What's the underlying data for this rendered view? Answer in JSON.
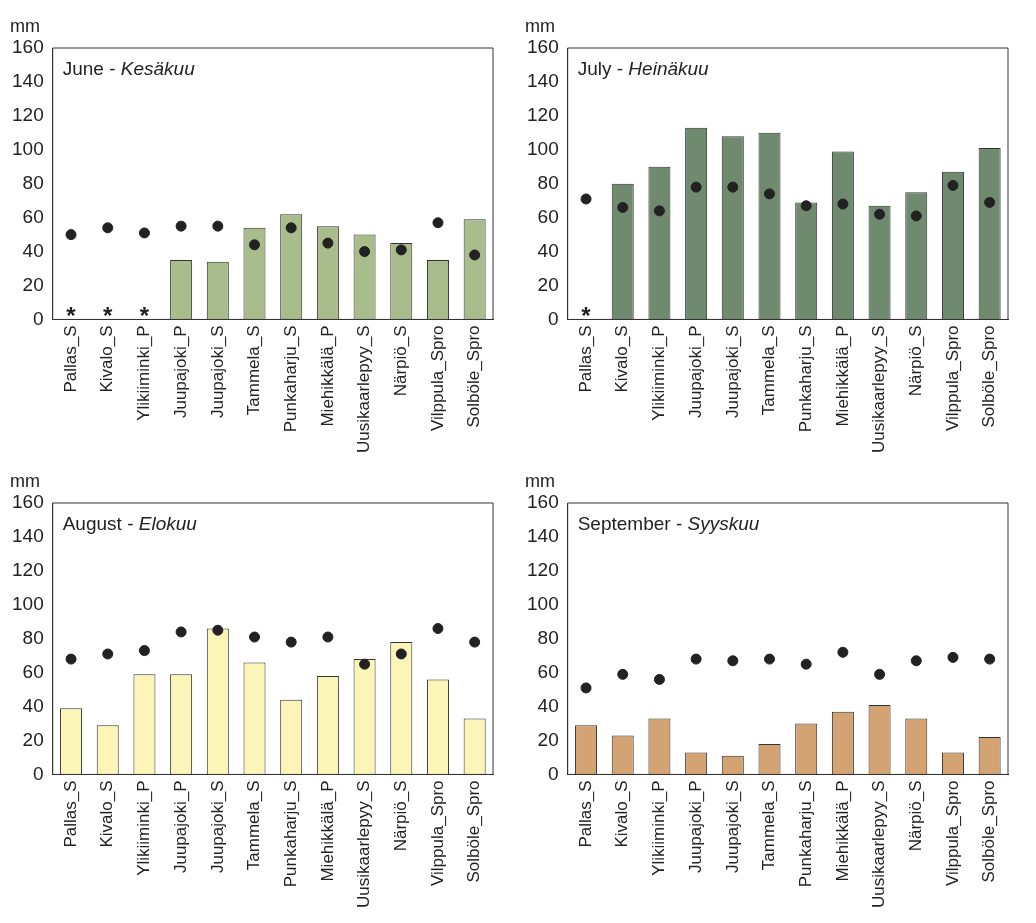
{
  "chart_data": [
    {
      "type": "bar",
      "title": "June -",
      "subtitle": "Kesäkuu",
      "ylabel": "mm",
      "categories": [
        "Pallas_S",
        "Kivalo_S",
        "Ylikiiminki_P",
        "Juupajoki_P",
        "Juupajoki_S",
        "Tammela_S",
        "Punkaharju_S",
        "Miehikkälä_P",
        "Uusikaarlepyy_S",
        "Närpiö_S",
        "Vilppula_Spro",
        "Solböle_Spro"
      ],
      "series": [
        {
          "color": "#a9bc8c",
          "values": [
            null,
            null,
            null,
            35,
            34,
            54,
            62,
            55,
            50,
            45,
            35,
            59
          ]
        },
        {
          "type": "scatter",
          "color": "#222222",
          "x": [
            "Pallas_S",
            "Kivalo_S",
            "Ylikiiminki_P",
            "Juupajoki_P",
            "Juupajoki_S",
            "Tammela_S",
            "Punkaharju_S",
            "Miehikkälä_P",
            "Uusikaarlepyy_S",
            "Närpiö_S",
            "Vilppula_Spro",
            "Solböle_Spro"
          ],
          "values": [
            50,
            54,
            51,
            55,
            55,
            44,
            54,
            45,
            40,
            41,
            57,
            38
          ]
        }
      ],
      "annotations": [
        "*",
        "*",
        "*"
      ],
      "ylim": [
        0,
        160
      ],
      "yticks": [
        0,
        20,
        40,
        60,
        80,
        100,
        120,
        140,
        160
      ],
      "grid": false,
      "legend": false,
      "marker": "circle"
    },
    {
      "type": "bar",
      "title": "July -",
      "subtitle": "Heinäkuu",
      "ylabel": "mm",
      "categories": [
        "Pallas_S",
        "Kivalo_S",
        "Ylikiiminki_P",
        "Juupajoki_P",
        "Juupajoki_S",
        "Tammela_S",
        "Punkaharju_S",
        "Miehikkälä_P",
        "Uusikaarlepyy_S",
        "Närpiö_S",
        "Vilppula_Spro",
        "Solböle_Spro"
      ],
      "series": [
        {
          "color": "#6f8a6e",
          "values": [
            null,
            80,
            90,
            113,
            108,
            110,
            69,
            99,
            67,
            75,
            87,
            101
          ]
        },
        {
          "type": "scatter",
          "color": "#222222",
          "x": [
            "Pallas_S",
            "Kivalo_S",
            "Ylikiiminki_P",
            "Juupajoki_P",
            "Juupajoki_S",
            "Tammela_S",
            "Punkaharju_S",
            "Miehikkälä_P",
            "Uusikaarlepyy_S",
            "Närpiö_S",
            "Vilppula_Spro",
            "Solböle_Spro"
          ],
          "values": [
            71,
            66,
            64,
            78,
            78,
            74,
            67,
            68,
            62,
            61,
            79,
            69
          ]
        }
      ],
      "annotations": [
        "*"
      ],
      "ylim": [
        0,
        160
      ],
      "yticks": [
        0,
        20,
        40,
        60,
        80,
        100,
        120,
        140,
        160
      ],
      "grid": false,
      "legend": false,
      "marker": "circle"
    },
    {
      "type": "bar",
      "title": "August -",
      "subtitle": "Elokuu",
      "ylabel": "mm",
      "categories": [
        "Pallas_S",
        "Kivalo_S",
        "Ylikiiminki_P",
        "Juupajoki_P",
        "Juupajoki_S",
        "Tammela_S",
        "Punkaharju_S",
        "Miehikkälä_P",
        "Uusikaarlepyy_S",
        "Närpiö_S",
        "Vilppula_Spro",
        "Solböle_Spro"
      ],
      "series": [
        {
          "color": "#fbf5b8",
          "values": [
            39,
            29,
            59,
            59,
            86,
            66,
            44,
            58,
            68,
            78,
            56,
            33
          ]
        },
        {
          "type": "scatter",
          "color": "#222222",
          "x": [
            "Pallas_S",
            "Kivalo_S",
            "Ylikiiminki_P",
            "Juupajoki_P",
            "Juupajoki_S",
            "Tammela_S",
            "Punkaharju_S",
            "Miehikkälä_P",
            "Uusikaarlepyy_S",
            "Närpiö_S",
            "Vilppula_Spro",
            "Solböle_Spro"
          ],
          "values": [
            68,
            71,
            73,
            84,
            85,
            81,
            78,
            81,
            65,
            71,
            86,
            78
          ]
        }
      ],
      "ylim": [
        0,
        160
      ],
      "yticks": [
        0,
        20,
        40,
        60,
        80,
        100,
        120,
        140,
        160
      ],
      "grid": false,
      "legend": false,
      "marker": "circle"
    },
    {
      "type": "bar",
      "title": "September -",
      "subtitle": "Syyskuu",
      "ylabel": "mm",
      "categories": [
        "Pallas_S",
        "Kivalo_S",
        "Ylikiiminki_P",
        "Juupajoki_P",
        "Juupajoki_S",
        "Tammela_S",
        "Punkaharju_S",
        "Miehikkälä_P",
        "Uusikaarlepyy_S",
        "Närpiö_S",
        "Vilppula_Spro",
        "Solböle_Spro"
      ],
      "series": [
        {
          "color": "#d4a373",
          "values": [
            29,
            23,
            33,
            13,
            11,
            18,
            30,
            37,
            41,
            33,
            13,
            22
          ]
        },
        {
          "type": "scatter",
          "color": "#222222",
          "x": [
            "Pallas_S",
            "Kivalo_S",
            "Ylikiiminki_P",
            "Juupajoki_P",
            "Juupajoki_S",
            "Tammela_S",
            "Punkaharju_S",
            "Miehikkälä_P",
            "Uusikaarlepyy_S",
            "Närpiö_S",
            "Vilppula_Spro",
            "Solböle_Spro"
          ],
          "values": [
            51,
            59,
            56,
            68,
            67,
            68,
            65,
            72,
            59,
            67,
            69,
            68
          ]
        }
      ],
      "ylim": [
        0,
        160
      ],
      "yticks": [
        0,
        20,
        40,
        60,
        80,
        100,
        120,
        140,
        160
      ],
      "grid": false,
      "legend": false,
      "marker": "circle"
    }
  ]
}
